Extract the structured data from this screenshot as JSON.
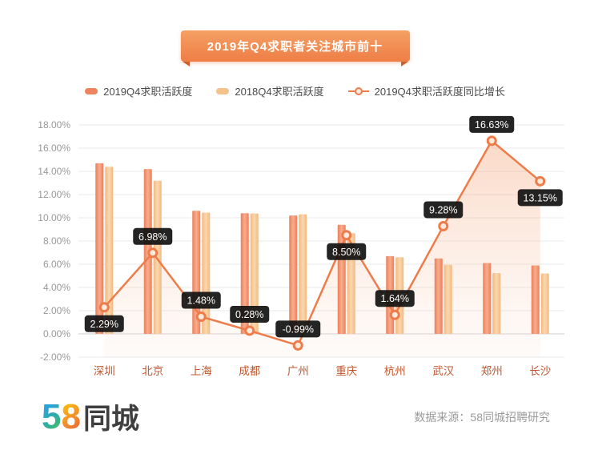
{
  "banner": {
    "title": "2019年Q4求职者关注城市前十"
  },
  "legend": [
    {
      "label": "2019Q4求职活跃度",
      "type": "bar",
      "color": "#ee8360"
    },
    {
      "label": "2018Q4求职活跃度",
      "type": "bar",
      "color": "#f5c28c"
    },
    {
      "label": "2019Q4求职活跃度同比增长",
      "type": "line",
      "color": "#ee7c4a"
    }
  ],
  "colors": {
    "bar2019_edge": "#ec7f5b",
    "bar2019_center": "#f8ad8c",
    "bar2018_edge": "#f2b97f",
    "bar2018_center": "#fbd7ae",
    "line": "#ee7c4a",
    "marker_fill": "#fdeadd",
    "area_top": "rgba(243,146,94,0.35)",
    "area_bottom": "rgba(250,226,211,0.15)",
    "grid": "#e9e9e9",
    "grid_zero": "#cfcfcf",
    "ytick_text": "#999999",
    "xtick_text": "#c2572e",
    "tooltip_bg": "#111111",
    "tooltip_text": "#ffffff"
  },
  "chart_data": {
    "type": "bar+line",
    "categories": [
      "深圳",
      "北京",
      "上海",
      "成都",
      "广州",
      "重庆",
      "杭州",
      "武汉",
      "郑州",
      "长沙"
    ],
    "series": [
      {
        "name": "2019Q4求职活跃度",
        "type": "bar",
        "values": [
          14.7,
          14.2,
          10.6,
          10.4,
          10.2,
          9.4,
          6.7,
          6.5,
          6.1,
          5.9
        ]
      },
      {
        "name": "2018Q4求职活跃度",
        "type": "bar",
        "values": [
          14.4,
          13.2,
          10.45,
          10.37,
          10.3,
          8.66,
          6.6,
          5.95,
          5.23,
          5.21
        ]
      },
      {
        "name": "2019Q4求职活跃度同比增长",
        "type": "line",
        "values": [
          2.29,
          6.98,
          1.48,
          0.28,
          -0.99,
          8.5,
          1.64,
          9.28,
          16.63,
          13.15
        ],
        "labels": [
          "2.29%",
          "6.98%",
          "1.48%",
          "0.28%",
          "-0.99%",
          "8.50%",
          "1.64%",
          "9.28%",
          "16.63%",
          "13.15%"
        ],
        "label_positions": [
          "below",
          "above",
          "above",
          "above",
          "above",
          "below",
          "above",
          "above",
          "above",
          "below"
        ]
      }
    ],
    "ylim": [
      -2,
      18
    ],
    "ytick_step": 2,
    "ytick_labels": [
      "18.00%",
      "16.00%",
      "14.00%",
      "12.00%",
      "10.00%",
      "8.00%",
      "6.00%",
      "4.00%",
      "2.00%",
      "0.00%",
      "-2.00%"
    ],
    "grid": true,
    "legend_position": "top"
  },
  "footer": {
    "logo_5": "5",
    "logo_8": "8",
    "logo_suffix": "同城",
    "source": "数据来源：58同城招聘研究"
  }
}
